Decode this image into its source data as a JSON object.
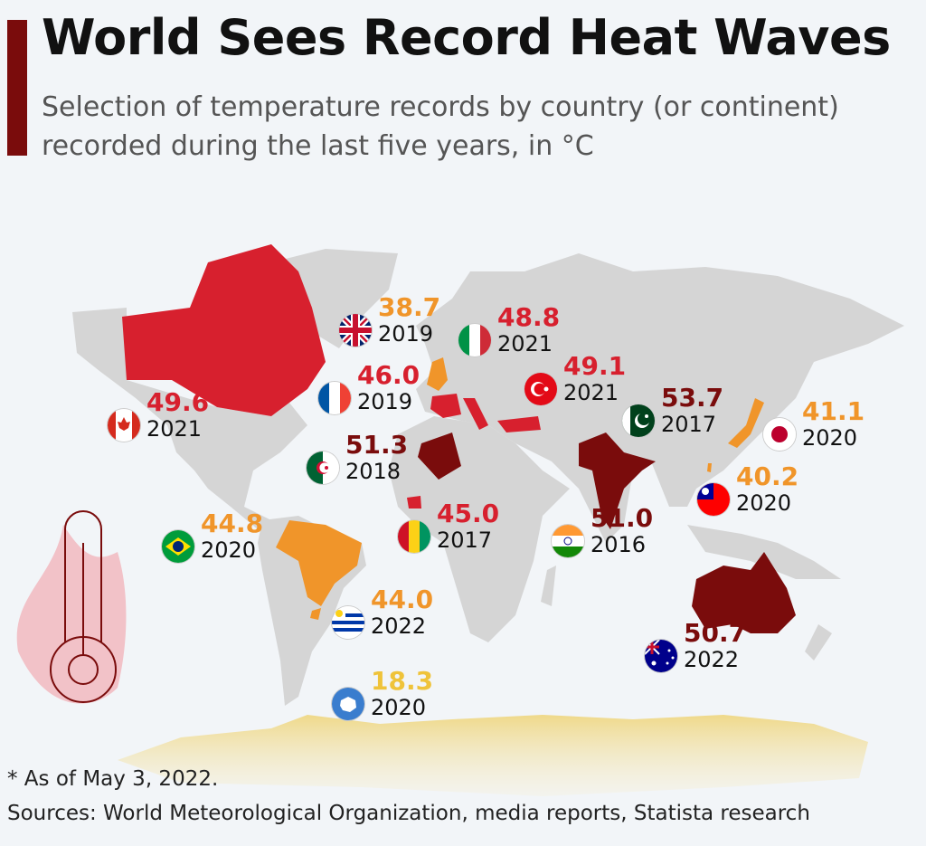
{
  "header": {
    "title": "World Sees Record Heat Waves",
    "subtitle": "Selection of temperature records by country (or continent) recorded during the last five years, in °C",
    "accent_color": "#7a0c0c"
  },
  "legend_colors": {
    "extreme": "#7a0c0c",
    "high": "#d7202e",
    "moderate": "#f0952a",
    "antarctica": "#efc33a",
    "land": "#d5d5d5"
  },
  "records": [
    {
      "region": "United Kingdom",
      "flag": "uk-flag-icon",
      "value": "38.7",
      "year": "2019",
      "color": "#f0952a"
    },
    {
      "region": "Italy",
      "flag": "italy-flag-icon",
      "value": "48.8",
      "year": "2021",
      "color": "#d7202e"
    },
    {
      "region": "France",
      "flag": "france-flag-icon",
      "value": "46.0",
      "year": "2019",
      "color": "#d7202e"
    },
    {
      "region": "Turkey",
      "flag": "turkey-flag-icon",
      "value": "49.1",
      "year": "2021",
      "color": "#d7202e"
    },
    {
      "region": "Pakistan",
      "flag": "pakistan-flag-icon",
      "value": "53.7",
      "year": "2017",
      "color": "#7a0c0c"
    },
    {
      "region": "Japan",
      "flag": "japan-flag-icon",
      "value": "41.1",
      "year": "2020",
      "color": "#f0952a"
    },
    {
      "region": "Canada",
      "flag": "canada-flag-icon",
      "value": "49.6",
      "year": "2021",
      "color": "#d7202e"
    },
    {
      "region": "Algeria",
      "flag": "algeria-flag-icon",
      "value": "51.3",
      "year": "2018",
      "color": "#7a0c0c"
    },
    {
      "region": "Taiwan",
      "flag": "taiwan-flag-icon",
      "value": "40.2",
      "year": "2020",
      "color": "#f0952a"
    },
    {
      "region": "Brazil",
      "flag": "brazil-flag-icon",
      "value": "44.8",
      "year": "2020",
      "color": "#f0952a"
    },
    {
      "region": "Guinea",
      "flag": "guinea-flag-icon",
      "value": "45.0",
      "year": "2017",
      "color": "#d7202e"
    },
    {
      "region": "India",
      "flag": "india-flag-icon",
      "value": "51.0",
      "year": "2016",
      "color": "#7a0c0c"
    },
    {
      "region": "Uruguay",
      "flag": "uruguay-flag-icon",
      "value": "44.0",
      "year": "2022",
      "color": "#f0952a"
    },
    {
      "region": "Australia",
      "flag": "australia-flag-icon",
      "value": "50.7",
      "year": "2022",
      "color": "#7a0c0c"
    },
    {
      "region": "Antarctica",
      "flag": "antarctica-flag-icon",
      "value": "18.3",
      "year": "2020",
      "color": "#efc33a"
    }
  ],
  "footer": {
    "note": "* As of May 3, 2022.",
    "sources": "Sources: World Meteorological Organization, media reports, Statista research"
  }
}
